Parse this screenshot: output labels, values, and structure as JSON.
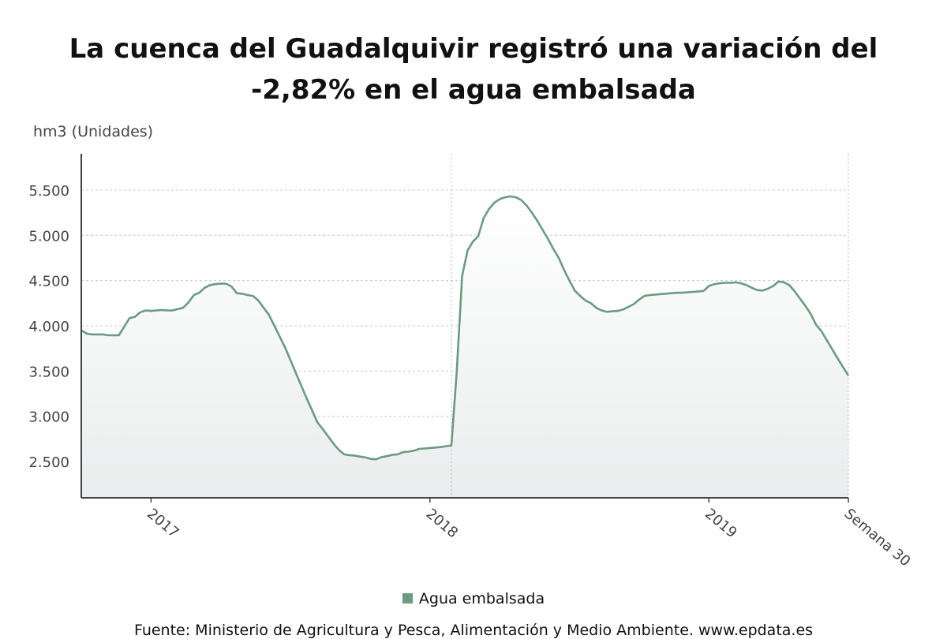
{
  "chart_data": {
    "type": "area",
    "title": "La cuenca del Guadalquivir registró una variación del -2,82% en el agua embalsada",
    "ylabel": "hm3 (Unidades)",
    "ylim": [
      2100,
      5900
    ],
    "yticks": [
      2500,
      3000,
      3500,
      4000,
      4500,
      5000,
      5500
    ],
    "ytick_labels": [
      "2.500",
      "3.000",
      "3.500",
      "4.000",
      "4.500",
      "5.000",
      "5.500"
    ],
    "xtick_labels": [
      "2017",
      "2018",
      "2019",
      "Semana 30"
    ],
    "grid": true,
    "legend_position": "bottom",
    "series": [
      {
        "name": "Agua embalsada",
        "color": "#6b9b80",
        "points": [
          [
            "2016 sem 40",
            3950
          ],
          [
            "2016 sem 41",
            3915
          ],
          [
            "2016 sem 42",
            3905
          ],
          [
            "2016 sem 43",
            3905
          ],
          [
            "2016 sem 44",
            3905
          ],
          [
            "2016 sem 45",
            3895
          ],
          [
            "2016 sem 46",
            3895
          ],
          [
            "2016 sem 47",
            3895
          ],
          [
            "2016 sem 48",
            3990
          ],
          [
            "2016 sem 49",
            4085
          ],
          [
            "2016 sem 50",
            4100
          ],
          [
            "2016 sem 51",
            4150
          ],
          [
            "2016 sem 52",
            4170
          ],
          [
            "2017 sem 1",
            4165
          ],
          [
            "2017 sem 2",
            4170
          ],
          [
            "2017 sem 3",
            4175
          ],
          [
            "2017 sem 4",
            4170
          ],
          [
            "2017 sem 5",
            4170
          ],
          [
            "2017 sem 6",
            4185
          ],
          [
            "2017 sem 7",
            4200
          ],
          [
            "2017 sem 8",
            4260
          ],
          [
            "2017 sem 9",
            4340
          ],
          [
            "2017 sem 10",
            4365
          ],
          [
            "2017 sem 11",
            4420
          ],
          [
            "2017 sem 12",
            4450
          ],
          [
            "2017 sem 13",
            4460
          ],
          [
            "2017 sem 14",
            4465
          ],
          [
            "2017 sem 15",
            4465
          ],
          [
            "2017 sem 16",
            4435
          ],
          [
            "2017 sem 17",
            4360
          ],
          [
            "2017 sem 18",
            4355
          ],
          [
            "2017 sem 19",
            4340
          ],
          [
            "2017 sem 20",
            4330
          ],
          [
            "2017 sem 21",
            4280
          ],
          [
            "2017 sem 22",
            4200
          ],
          [
            "2017 sem 23",
            4120
          ],
          [
            "2017 sem 24",
            4000
          ],
          [
            "2017 sem 25",
            3880
          ],
          [
            "2017 sem 26",
            3760
          ],
          [
            "2017 sem 27",
            3620
          ],
          [
            "2017 sem 28",
            3480
          ],
          [
            "2017 sem 29",
            3340
          ],
          [
            "2017 sem 30",
            3200
          ],
          [
            "2017 sem 31",
            3070
          ],
          [
            "2017 sem 32",
            2935
          ],
          [
            "2017 sem 33",
            2860
          ],
          [
            "2017 sem 34",
            2780
          ],
          [
            "2017 sem 35",
            2700
          ],
          [
            "2017 sem 36",
            2630
          ],
          [
            "2017 sem 37",
            2580
          ],
          [
            "2017 sem 38",
            2570
          ],
          [
            "2017 sem 39",
            2565
          ],
          [
            "2017 sem 40",
            2555
          ],
          [
            "2017 sem 41",
            2545
          ],
          [
            "2017 sem 42",
            2530
          ],
          [
            "2017 sem 43",
            2525
          ],
          [
            "2017 sem 44",
            2550
          ],
          [
            "2017 sem 45",
            2560
          ],
          [
            "2017 sem 46",
            2575
          ],
          [
            "2017 sem 47",
            2580
          ],
          [
            "2017 sem 48",
            2605
          ],
          [
            "2017 sem 49",
            2610
          ],
          [
            "2017 sem 50",
            2620
          ],
          [
            "2017 sem 51",
            2640
          ],
          [
            "2017 sem 52",
            2645
          ],
          [
            "2018 sem 1",
            2650
          ],
          [
            "2018 sem 2",
            2655
          ],
          [
            "2018 sem 3",
            2660
          ],
          [
            "2018 sem 4",
            2670
          ],
          [
            "2018 sem 5",
            2680
          ],
          [
            "2018 sem 6",
            3500
          ],
          [
            "2018 sem 7",
            4550
          ],
          [
            "2018 sem 8",
            4830
          ],
          [
            "2018 sem 9",
            4930
          ],
          [
            "2018 sem 10",
            4990
          ],
          [
            "2018 sem 11",
            5190
          ],
          [
            "2018 sem 12",
            5290
          ],
          [
            "2018 sem 13",
            5360
          ],
          [
            "2018 sem 14",
            5400
          ],
          [
            "2018 sem 15",
            5420
          ],
          [
            "2018 sem 16",
            5430
          ],
          [
            "2018 sem 17",
            5420
          ],
          [
            "2018 sem 18",
            5390
          ],
          [
            "2018 sem 19",
            5330
          ],
          [
            "2018 sem 20",
            5250
          ],
          [
            "2018 sem 21",
            5160
          ],
          [
            "2018 sem 22",
            5060
          ],
          [
            "2018 sem 23",
            4960
          ],
          [
            "2018 sem 24",
            4850
          ],
          [
            "2018 sem 25",
            4750
          ],
          [
            "2018 sem 26",
            4620
          ],
          [
            "2018 sem 27",
            4500
          ],
          [
            "2018 sem 28",
            4390
          ],
          [
            "2018 sem 29",
            4330
          ],
          [
            "2018 sem 30",
            4280
          ],
          [
            "2018 sem 31",
            4250
          ],
          [
            "2018 sem 32",
            4200
          ],
          [
            "2018 sem 33",
            4170
          ],
          [
            "2018 sem 34",
            4155
          ],
          [
            "2018 sem 35",
            4160
          ],
          [
            "2018 sem 36",
            4165
          ],
          [
            "2018 sem 37",
            4180
          ],
          [
            "2018 sem 38",
            4210
          ],
          [
            "2018 sem 39",
            4240
          ],
          [
            "2018 sem 40",
            4290
          ],
          [
            "2018 sem 41",
            4330
          ],
          [
            "2018 sem 42",
            4340
          ],
          [
            "2018 sem 43",
            4345
          ],
          [
            "2018 sem 44",
            4350
          ],
          [
            "2018 sem 45",
            4355
          ],
          [
            "2018 sem 46",
            4360
          ],
          [
            "2018 sem 47",
            4365
          ],
          [
            "2018 sem 48",
            4365
          ],
          [
            "2018 sem 49",
            4370
          ],
          [
            "2018 sem 50",
            4375
          ],
          [
            "2018 sem 51",
            4380
          ],
          [
            "2018 sem 52",
            4385
          ],
          [
            "2019 sem 1",
            4440
          ],
          [
            "2019 sem 2",
            4460
          ],
          [
            "2019 sem 3",
            4470
          ],
          [
            "2019 sem 4",
            4475
          ],
          [
            "2019 sem 5",
            4475
          ],
          [
            "2019 sem 6",
            4480
          ],
          [
            "2019 sem 7",
            4470
          ],
          [
            "2019 sem 8",
            4450
          ],
          [
            "2019 sem 9",
            4420
          ],
          [
            "2019 sem 10",
            4395
          ],
          [
            "2019 sem 11",
            4390
          ],
          [
            "2019 sem 12",
            4410
          ],
          [
            "2019 sem 13",
            4440
          ],
          [
            "2019 sem 14",
            4490
          ],
          [
            "2019 sem 15",
            4480
          ],
          [
            "2019 sem 16",
            4450
          ],
          [
            "2019 sem 17",
            4380
          ],
          [
            "2019 sem 18",
            4300
          ],
          [
            "2019 sem 19",
            4220
          ],
          [
            "2019 sem 20",
            4130
          ],
          [
            "2019 sem 21",
            4010
          ],
          [
            "2019 sem 22",
            3940
          ],
          [
            "2019 sem 23",
            3840
          ],
          [
            "2019 sem 24",
            3740
          ],
          [
            "2019 sem 25",
            3640
          ],
          [
            "2019 sem 26",
            3545
          ],
          [
            "2019 sem 27",
            3450
          ]
        ]
      }
    ],
    "source": "Fuente: Ministerio de Agricultura y Pesca, Alimentación y Medio Ambiente. www.epdata.es"
  }
}
